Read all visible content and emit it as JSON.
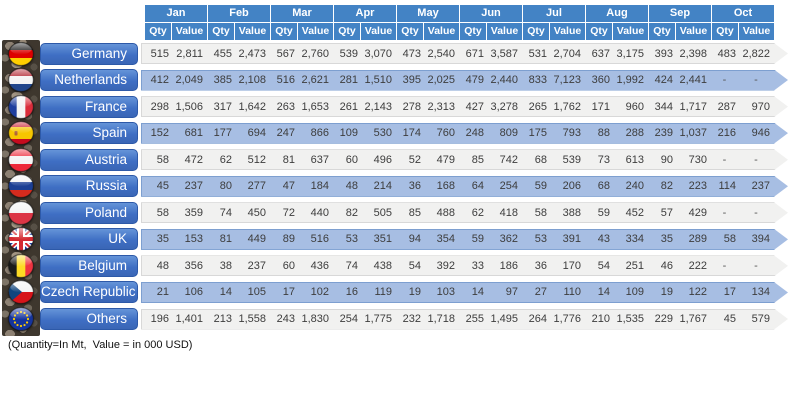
{
  "colors": {
    "header_blue": "#4383c5",
    "label_blue": "#3f6fc4",
    "band_blue": "#a7bee3",
    "band_gray": "#f1f1f0",
    "text_dark": "#3d3d3d"
  },
  "chart_data": {
    "type": "table",
    "unit_note": "(Quantity=In Mt,  Value = in 000 USD)",
    "months": [
      "Jan",
      "Feb",
      "Mar",
      "Apr",
      "May",
      "Jun",
      "Jul",
      "Aug",
      "Sep",
      "Oct"
    ],
    "measures": [
      "Qty",
      "Value"
    ],
    "rows": [
      {
        "country": "Germany",
        "flag": "germany-flag-icon",
        "cells": [
          "515",
          "2,811",
          "455",
          "2,473",
          "567",
          "2,760",
          "539",
          "3,070",
          "473",
          "2,540",
          "671",
          "3,587",
          "531",
          "2,704",
          "637",
          "3,175",
          "393",
          "2,398",
          "483",
          "2,822"
        ]
      },
      {
        "country": "Netherlands",
        "flag": "netherlands-flag-icon",
        "cells": [
          "412",
          "2,049",
          "385",
          "2,108",
          "516",
          "2,621",
          "281",
          "1,510",
          "395",
          "2,025",
          "479",
          "2,440",
          "833",
          "7,123",
          "360",
          "1,992",
          "424",
          "2,441",
          "-",
          "-"
        ]
      },
      {
        "country": "France",
        "flag": "france-flag-icon",
        "cells": [
          "298",
          "1,506",
          "317",
          "1,642",
          "263",
          "1,653",
          "261",
          "2,143",
          "278",
          "2,313",
          "427",
          "3,278",
          "265",
          "1,762",
          "171",
          "960",
          "344",
          "1,717",
          "287",
          "970"
        ]
      },
      {
        "country": "Spain",
        "flag": "spain-flag-icon",
        "cells": [
          "152",
          "681",
          "177",
          "694",
          "247",
          "866",
          "109",
          "530",
          "174",
          "760",
          "248",
          "809",
          "175",
          "793",
          "88",
          "288",
          "239",
          "1,037",
          "216",
          "946"
        ]
      },
      {
        "country": "Austria",
        "flag": "austria-flag-icon",
        "cells": [
          "58",
          "472",
          "62",
          "512",
          "81",
          "637",
          "60",
          "496",
          "52",
          "479",
          "85",
          "742",
          "68",
          "539",
          "73",
          "613",
          "90",
          "730",
          "-",
          "-"
        ]
      },
      {
        "country": "Russia",
        "flag": "russia-flag-icon",
        "cells": [
          "45",
          "237",
          "80",
          "277",
          "47",
          "184",
          "48",
          "214",
          "36",
          "168",
          "64",
          "254",
          "59",
          "206",
          "68",
          "240",
          "82",
          "223",
          "114",
          "237"
        ]
      },
      {
        "country": "Poland",
        "flag": "poland-flag-icon",
        "cells": [
          "58",
          "359",
          "74",
          "450",
          "72",
          "440",
          "82",
          "505",
          "85",
          "488",
          "62",
          "418",
          "58",
          "388",
          "59",
          "452",
          "57",
          "429",
          "-",
          "-"
        ]
      },
      {
        "country": "UK",
        "flag": "uk-flag-icon",
        "cells": [
          "35",
          "153",
          "81",
          "449",
          "89",
          "516",
          "53",
          "351",
          "94",
          "354",
          "59",
          "362",
          "53",
          "391",
          "43",
          "334",
          "35",
          "289",
          "58",
          "394"
        ]
      },
      {
        "country": "Belgium",
        "flag": "belgium-flag-icon",
        "cells": [
          "48",
          "356",
          "38",
          "237",
          "60",
          "436",
          "74",
          "438",
          "54",
          "392",
          "33",
          "186",
          "36",
          "170",
          "54",
          "251",
          "46",
          "222",
          "-",
          "-"
        ]
      },
      {
        "country": "Czech Republic",
        "flag": "czech-flag-icon",
        "cells": [
          "21",
          "106",
          "14",
          "105",
          "17",
          "102",
          "16",
          "119",
          "19",
          "103",
          "14",
          "97",
          "27",
          "110",
          "14",
          "109",
          "19",
          "122",
          "17",
          "134"
        ]
      },
      {
        "country": "Others",
        "flag": "eu-flag-icon",
        "cells": [
          "196",
          "1,401",
          "213",
          "1,558",
          "243",
          "1,830",
          "254",
          "1,775",
          "232",
          "1,718",
          "255",
          "1,495",
          "264",
          "1,776",
          "210",
          "1,535",
          "229",
          "1,767",
          "45",
          "579"
        ]
      }
    ]
  }
}
